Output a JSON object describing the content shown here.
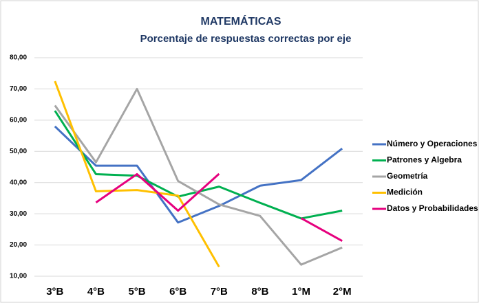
{
  "chart_data": {
    "type": "line",
    "title": "MATEMÁTICAS",
    "subtitle": "Porcentaje de respuestas correctas por eje",
    "categories": [
      "3°B",
      "4°B",
      "5°B",
      "6°B",
      "7°B",
      "8°B",
      "1°M",
      "2°M"
    ],
    "series": [
      {
        "name": "Número y Operaciones",
        "color": "#4472c4",
        "values": [
          58,
          45.4,
          45.4,
          27.2,
          32.5,
          39,
          40.8,
          50.9
        ]
      },
      {
        "name": "Patrones y Algebra",
        "color": "#00b050",
        "values": [
          63,
          42.7,
          42.2,
          35.5,
          38.7,
          33.5,
          28.5,
          31
        ]
      },
      {
        "name": "Geometría",
        "color": "#a5a5a5",
        "values": [
          64.7,
          46.5,
          70,
          40.5,
          33,
          29.3,
          13.7,
          19.2
        ]
      },
      {
        "name": "Medición",
        "color": "#ffc000",
        "values": [
          72.5,
          37.2,
          37.6,
          35.8,
          13,
          null,
          null,
          null
        ]
      },
      {
        "name": "Datos y Probabilidades",
        "color": "#e6007e",
        "values": [
          null,
          33.6,
          42.7,
          31,
          42.8,
          null,
          28.6,
          21.3
        ]
      }
    ],
    "ylim": [
      10,
      80
    ],
    "yticks": [
      {
        "value": 10,
        "label": "10,00"
      },
      {
        "value": 20,
        "label": "20,00"
      },
      {
        "value": 30,
        "label": "30,00"
      },
      {
        "value": 40,
        "label": "40,00"
      },
      {
        "value": 50,
        "label": "50,00"
      },
      {
        "value": 60,
        "label": "60,00"
      },
      {
        "value": 70,
        "label": "70,00"
      },
      {
        "value": 80,
        "label": "80,00"
      }
    ],
    "grid": true,
    "legend": "right"
  }
}
